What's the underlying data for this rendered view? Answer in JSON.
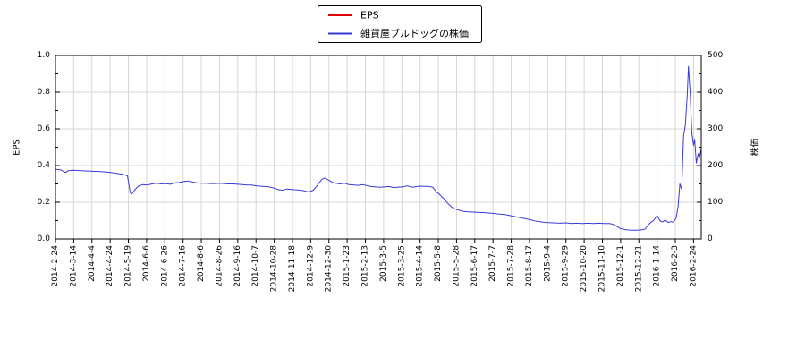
{
  "legend": {
    "entries": [
      {
        "label": "EPS",
        "color": "#e00000"
      },
      {
        "label": "雑貨屋ブルドッグの株価",
        "color": "#3a3ad6"
      }
    ]
  },
  "chart_data": {
    "type": "line",
    "title": "",
    "grid": true,
    "legend_position": "top-center",
    "left_axis": {
      "label": "EPS",
      "range": [
        0,
        1
      ],
      "ticks": [
        "0.0",
        "0.2",
        "0.4",
        "0.6",
        "0.8",
        "1.0"
      ]
    },
    "right_axis": {
      "label": "株価",
      "range": [
        0,
        500
      ],
      "ticks": [
        "0",
        "100",
        "200",
        "300",
        "400",
        "500"
      ]
    },
    "x_tick_labels": [
      "2014-2-24",
      "2014-3-14",
      "2014-4-4",
      "2014-4-24",
      "2014-5-19",
      "2014-6-6",
      "2014-6-26",
      "2014-7-16",
      "2014-8-6",
      "2014-8-26",
      "2014-9-16",
      "2014-10-7",
      "2014-10-28",
      "2014-11-18",
      "2014-12-9",
      "2014-12-30",
      "2015-1-23",
      "2015-2-13",
      "2015-3-5",
      "2015-3-25",
      "2015-4-14",
      "2015-5-8",
      "2015-5-28",
      "2015-6-17",
      "2015-7-7",
      "2015-7-28",
      "2015-8-17",
      "2015-9-4",
      "2015-9-29",
      "2015-10-20",
      "2015-11-10",
      "2015-12-1",
      "2015-12-21",
      "2016-1-14",
      "2016-2-3",
      "2016-2-24"
    ],
    "series": [
      {
        "name": "EPS",
        "color": "#e00000",
        "axis": "left",
        "visible_line": false,
        "points": []
      },
      {
        "name": "雑貨屋ブルドッグの株価",
        "color": "#3a3ad6",
        "axis": "right",
        "visible_line": true,
        "points": [
          [
            0,
            190
          ],
          [
            0.3,
            188
          ],
          [
            0.55,
            181
          ],
          [
            0.7,
            186
          ],
          [
            1.0,
            187
          ],
          [
            1.4,
            186
          ],
          [
            1.9,
            185
          ],
          [
            2.4,
            184
          ],
          [
            2.9,
            182
          ],
          [
            3.3,
            179
          ],
          [
            3.7,
            176
          ],
          [
            3.95,
            172
          ],
          [
            4.1,
            126
          ],
          [
            4.2,
            123
          ],
          [
            4.35,
            134
          ],
          [
            4.55,
            144
          ],
          [
            4.8,
            148
          ],
          [
            5.05,
            147
          ],
          [
            5.3,
            150
          ],
          [
            5.55,
            152
          ],
          [
            5.8,
            150
          ],
          [
            6.05,
            151
          ],
          [
            6.3,
            149
          ],
          [
            6.55,
            153
          ],
          [
            6.8,
            154
          ],
          [
            7.0,
            156
          ],
          [
            7.25,
            158
          ],
          [
            7.5,
            155
          ],
          [
            7.75,
            153
          ],
          [
            8.0,
            152
          ],
          [
            8.25,
            152
          ],
          [
            8.5,
            151
          ],
          [
            8.75,
            151
          ],
          [
            9.0,
            152
          ],
          [
            9.25,
            151
          ],
          [
            9.5,
            150
          ],
          [
            9.75,
            150
          ],
          [
            10.0,
            149
          ],
          [
            10.25,
            148
          ],
          [
            10.5,
            147
          ],
          [
            10.75,
            147
          ],
          [
            11.0,
            145
          ],
          [
            11.2,
            144
          ],
          [
            11.45,
            143
          ],
          [
            11.7,
            142
          ],
          [
            11.95,
            139
          ],
          [
            12.2,
            135
          ],
          [
            12.45,
            133
          ],
          [
            12.7,
            136
          ],
          [
            12.95,
            135
          ],
          [
            13.2,
            134
          ],
          [
            13.45,
            133
          ],
          [
            13.65,
            131
          ],
          [
            13.9,
            128
          ],
          [
            14.15,
            133
          ],
          [
            14.4,
            148
          ],
          [
            14.6,
            162
          ],
          [
            14.77,
            166
          ],
          [
            15.0,
            160
          ],
          [
            15.25,
            153
          ],
          [
            15.6,
            150
          ],
          [
            15.85,
            152
          ],
          [
            16.1,
            148
          ],
          [
            16.6,
            146
          ],
          [
            16.85,
            148
          ],
          [
            17.3,
            143
          ],
          [
            17.8,
            141
          ],
          [
            18.3,
            143
          ],
          [
            18.55,
            140
          ],
          [
            19.05,
            142
          ],
          [
            19.3,
            145
          ],
          [
            19.55,
            141
          ],
          [
            20.0,
            144
          ],
          [
            20.5,
            143
          ],
          [
            20.7,
            141
          ],
          [
            20.9,
            128
          ],
          [
            21.1,
            120
          ],
          [
            21.3,
            110
          ],
          [
            21.5,
            98
          ],
          [
            21.7,
            88
          ],
          [
            21.9,
            82
          ],
          [
            22.1,
            79
          ],
          [
            22.4,
            75
          ],
          [
            22.7,
            74
          ],
          [
            23.0,
            73
          ],
          [
            23.45,
            72
          ],
          [
            23.9,
            70
          ],
          [
            24.3,
            68
          ],
          [
            24.7,
            66
          ],
          [
            25.1,
            62
          ],
          [
            25.5,
            58
          ],
          [
            25.9,
            54
          ],
          [
            26.4,
            48
          ],
          [
            26.9,
            45
          ],
          [
            27.3,
            44
          ],
          [
            27.7,
            43
          ],
          [
            28.0,
            44
          ],
          [
            28.3,
            42
          ],
          [
            28.6,
            43
          ],
          [
            28.9,
            42
          ],
          [
            29.2,
            43
          ],
          [
            29.5,
            42
          ],
          [
            29.8,
            43
          ],
          [
            30.1,
            42
          ],
          [
            30.4,
            42
          ],
          [
            30.6,
            40
          ],
          [
            30.8,
            34
          ],
          [
            31.0,
            28
          ],
          [
            31.3,
            25
          ],
          [
            31.6,
            24
          ],
          [
            31.9,
            24
          ],
          [
            32.2,
            25
          ],
          [
            32.35,
            27
          ],
          [
            32.5,
            38
          ],
          [
            32.65,
            45
          ],
          [
            32.8,
            50
          ],
          [
            33.0,
            64
          ],
          [
            33.15,
            50
          ],
          [
            33.3,
            46
          ],
          [
            33.45,
            52
          ],
          [
            33.6,
            45
          ],
          [
            33.75,
            47
          ],
          [
            33.9,
            46
          ],
          [
            34.05,
            58
          ],
          [
            34.15,
            88
          ],
          [
            34.25,
            150
          ],
          [
            34.35,
            135
          ],
          [
            34.45,
            280
          ],
          [
            34.55,
            310
          ],
          [
            34.65,
            390
          ],
          [
            34.72,
            470
          ],
          [
            34.82,
            395
          ],
          [
            34.9,
            290
          ],
          [
            35.0,
            255
          ],
          [
            35.06,
            272
          ],
          [
            35.15,
            207
          ],
          [
            35.25,
            232
          ],
          [
            35.32,
            222
          ],
          [
            35.42,
            245
          ]
        ]
      }
    ]
  }
}
